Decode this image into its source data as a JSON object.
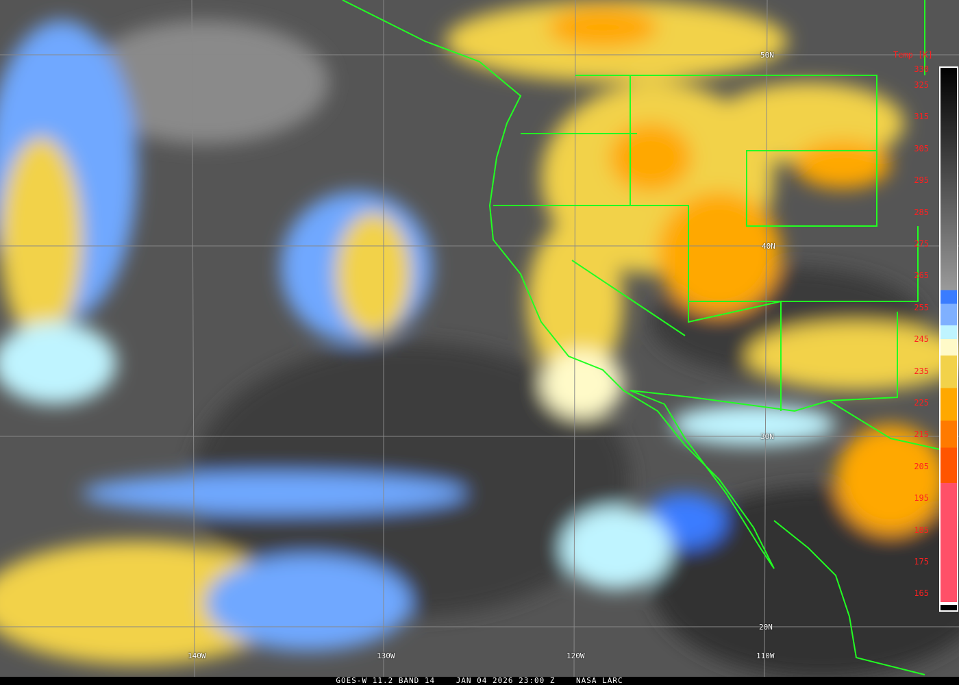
{
  "caption": {
    "satellite": "GOES-W 11.2 BAND 14",
    "datetime": "JAN 04 2026 23:00 Z",
    "source": "NASA LARC"
  },
  "legend": {
    "title": "Temp [K]",
    "ticks": [
      "330",
      "325",
      "315",
      "305",
      "295",
      "285",
      "275",
      "265",
      "255",
      "245",
      "235",
      "225",
      "215",
      "205",
      "195",
      "185",
      "175",
      "165"
    ],
    "colors": {
      "warm_gray_top": "#000000",
      "warm_gray_bottom": "#9a9a9a",
      "blue": "#3a7cff",
      "light_blue": "#7fb0ff",
      "cyan": "#bff4ff",
      "cream": "#fffac8",
      "yellow": "#f2d24a",
      "orange": "#ffa800",
      "dark_orange": "#ff7a00",
      "red_orange": "#ff5500",
      "pink": "#ff5068",
      "coastline": "#22ff22"
    }
  },
  "grid": {
    "latitudes": [
      "50N",
      "40N",
      "30N",
      "20N"
    ],
    "longitudes": [
      "140W",
      "130W",
      "120W",
      "110W"
    ]
  }
}
